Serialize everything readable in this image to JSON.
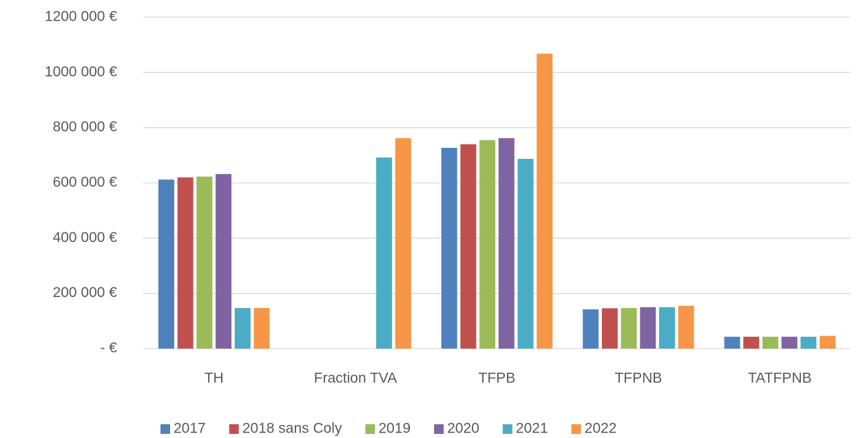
{
  "chart_data": {
    "type": "bar",
    "categories": [
      "TH",
      "Fraction TVA",
      "TFPB",
      "TFPNB",
      "TATFPNB"
    ],
    "series": [
      {
        "name": "2017",
        "color": "#4f81bd",
        "values": [
          612000,
          null,
          727000,
          142000,
          43000
        ]
      },
      {
        "name": "2018 sans Coly",
        "color": "#c0504d",
        "values": [
          620000,
          null,
          740000,
          146000,
          43000
        ]
      },
      {
        "name": "2019",
        "color": "#9bbb59",
        "values": [
          623000,
          null,
          755000,
          147000,
          43000
        ]
      },
      {
        "name": "2020",
        "color": "#8064a2",
        "values": [
          632000,
          null,
          762000,
          150000,
          43000
        ]
      },
      {
        "name": "2021",
        "color": "#4bacc6",
        "values": [
          147000,
          692000,
          687000,
          150000,
          43000
        ]
      },
      {
        "name": "2022",
        "color": "#f79646",
        "values": [
          147000,
          762000,
          1068000,
          155000,
          46000
        ]
      }
    ],
    "ylim": [
      0,
      1200000
    ],
    "yticks": [
      {
        "value": 0,
        "label": "-   €"
      },
      {
        "value": 200000,
        "label": "200 000 €"
      },
      {
        "value": 400000,
        "label": "400 000 €"
      },
      {
        "value": 600000,
        "label": "600 000 €"
      },
      {
        "value": 800000,
        "label": "800 000 €"
      },
      {
        "value": 1000000,
        "label": "1000 000 €"
      },
      {
        "value": 1200000,
        "label": "1200 000 €"
      }
    ],
    "grid": true,
    "legend": "bottom"
  }
}
